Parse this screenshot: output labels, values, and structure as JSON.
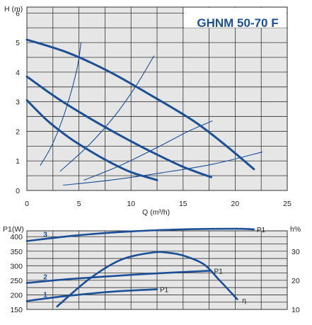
{
  "chart_data": [
    {
      "type": "line",
      "title": "GHNM 50-70 F",
      "ylabel": "H (m)",
      "xlabel": "Q (m³/h)",
      "xlim": [
        0,
        25
      ],
      "ylim": [
        0,
        6.2
      ],
      "x_ticks": [
        "0",
        "5",
        "10",
        "15",
        "20",
        "25"
      ],
      "y_ticks": [
        "0",
        "1",
        "2",
        "3",
        "4",
        "5",
        "6"
      ],
      "grid": true,
      "series": [
        {
          "style": "pump",
          "x": [
            0,
            4,
            8,
            12,
            16,
            19,
            21.8
          ],
          "y": [
            5.1,
            4.65,
            4.0,
            3.2,
            2.35,
            1.55,
            0.72
          ]
        },
        {
          "style": "pump",
          "x": [
            0,
            3,
            6,
            9,
            12,
            15,
            17.7
          ],
          "y": [
            3.85,
            3.1,
            2.45,
            1.85,
            1.3,
            0.8,
            0.45
          ]
        },
        {
          "style": "pump",
          "x": [
            0,
            2,
            4,
            6,
            8,
            10,
            12.5
          ],
          "y": [
            3.05,
            2.35,
            1.8,
            1.35,
            0.95,
            0.62,
            0.35
          ]
        },
        {
          "style": "system",
          "x": [
            1.3,
            2.5,
            3.8,
            4.8,
            5.2
          ],
          "y": [
            0.85,
            1.6,
            2.8,
            4.1,
            5.0
          ]
        },
        {
          "style": "system",
          "x": [
            3.2,
            6,
            8.5,
            10.5,
            12.2
          ],
          "y": [
            0.65,
            1.55,
            2.55,
            3.55,
            4.55
          ]
        },
        {
          "style": "system",
          "x": [
            5.5,
            9,
            12.5,
            15.5,
            17.8
          ],
          "y": [
            0.35,
            0.85,
            1.45,
            2.0,
            2.35
          ]
        },
        {
          "style": "system",
          "x": [
            3.5,
            8,
            13,
            18,
            22.6
          ],
          "y": [
            0.18,
            0.35,
            0.6,
            0.9,
            1.3
          ]
        }
      ]
    },
    {
      "type": "line",
      "ylabel_left": "P1(W)",
      "ylabel_right": "h%",
      "xlim": [
        0,
        25
      ],
      "ylim_left": [
        150,
        420
      ],
      "ylim_right": [
        10,
        37
      ],
      "y_ticks_left": [
        "150",
        "200",
        "250",
        "300",
        "350",
        "400"
      ],
      "y_ticks_right": [
        "10",
        "20",
        "30"
      ],
      "grid": true,
      "series": [
        {
          "name": "P1",
          "label": "3",
          "axis": "left",
          "x": [
            0,
            5,
            10,
            15,
            20,
            21.8
          ],
          "y": [
            385,
            405,
            418,
            425,
            427,
            425
          ]
        },
        {
          "name": "P1",
          "label": "2",
          "axis": "left",
          "x": [
            0,
            4,
            8,
            12,
            17.7
          ],
          "y": [
            241,
            254,
            264,
            273,
            283
          ]
        },
        {
          "name": "P1",
          "label": "1",
          "axis": "left",
          "x": [
            0,
            3,
            6,
            9,
            12.5
          ],
          "y": [
            179,
            193,
            204,
            213,
            219
          ]
        },
        {
          "name": "η",
          "axis": "right",
          "x": [
            2.9,
            6,
            9,
            12,
            13.5,
            15,
            17,
            18.5,
            20.2
          ],
          "y": [
            11,
            20.5,
            27,
            29.5,
            29.5,
            28.5,
            25.5,
            20,
            13.5
          ]
        }
      ]
    }
  ],
  "colors": {
    "curve": "#1b4f96",
    "plot_bg": "#e6e6e6",
    "grid": "#333333",
    "axis_text": "#222222"
  }
}
